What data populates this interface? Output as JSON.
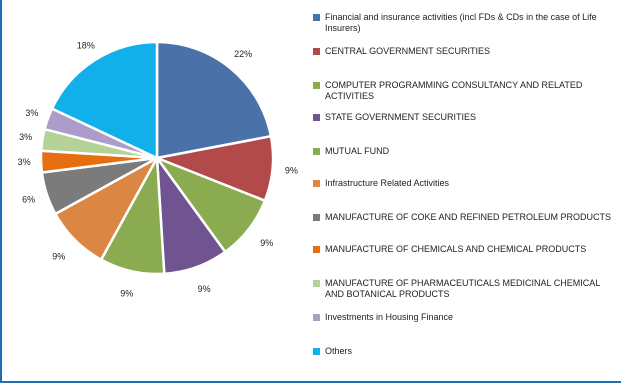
{
  "chart_data": {
    "type": "pie",
    "title": "",
    "slices": [
      {
        "label": "Financial and insurance activities (incl FDs & CDs in the case of Life Insurers)",
        "value": 22,
        "data_label": "22%",
        "color": "#4a72a8"
      },
      {
        "label": "CENTRAL GOVERNMENT SECURITIES",
        "value": 9,
        "data_label": "9%",
        "color": "#b14a48"
      },
      {
        "label": "COMPUTER PROGRAMMING  CONSULTANCY AND RELATED ACTIVITIES",
        "value": 9,
        "data_label": "9%",
        "color": "#8aab4f"
      },
      {
        "label": "STATE GOVERNMENT SECURITIES",
        "value": 9,
        "data_label": "9%",
        "color": "#705491"
      },
      {
        "label": "MUTUAL FUND",
        "value": 9,
        "data_label": "9%",
        "color": "#8aab4f"
      },
      {
        "label": "Infrastructure Related Activities",
        "value": 9,
        "data_label": "9%",
        "color": "#db8743"
      },
      {
        "label": "MANUFACTURE OF COKE AND REFINED PETROLEUM PRODUCTS",
        "value": 6,
        "data_label": "6%",
        "color": "#7b7b7b"
      },
      {
        "label": "MANUFACTURE OF CHEMICALS AND CHEMICAL PRODUCTS",
        "value": 3,
        "data_label": "3%",
        "color": "#e76e10"
      },
      {
        "label": "MANUFACTURE OF PHARMACEUTICALS  MEDICINAL CHEMICAL AND BOTANICAL PRODUCTS",
        "value": 3,
        "data_label": "3%",
        "color": "#b4d197"
      },
      {
        "label": "Investments in Housing Finance",
        "value": 3,
        "data_label": "3%",
        "color": "#ab9cc9"
      },
      {
        "label": "Others",
        "value": 18,
        "data_label": "18%",
        "color": "#12b0ea"
      }
    ],
    "legend_position": "right"
  }
}
